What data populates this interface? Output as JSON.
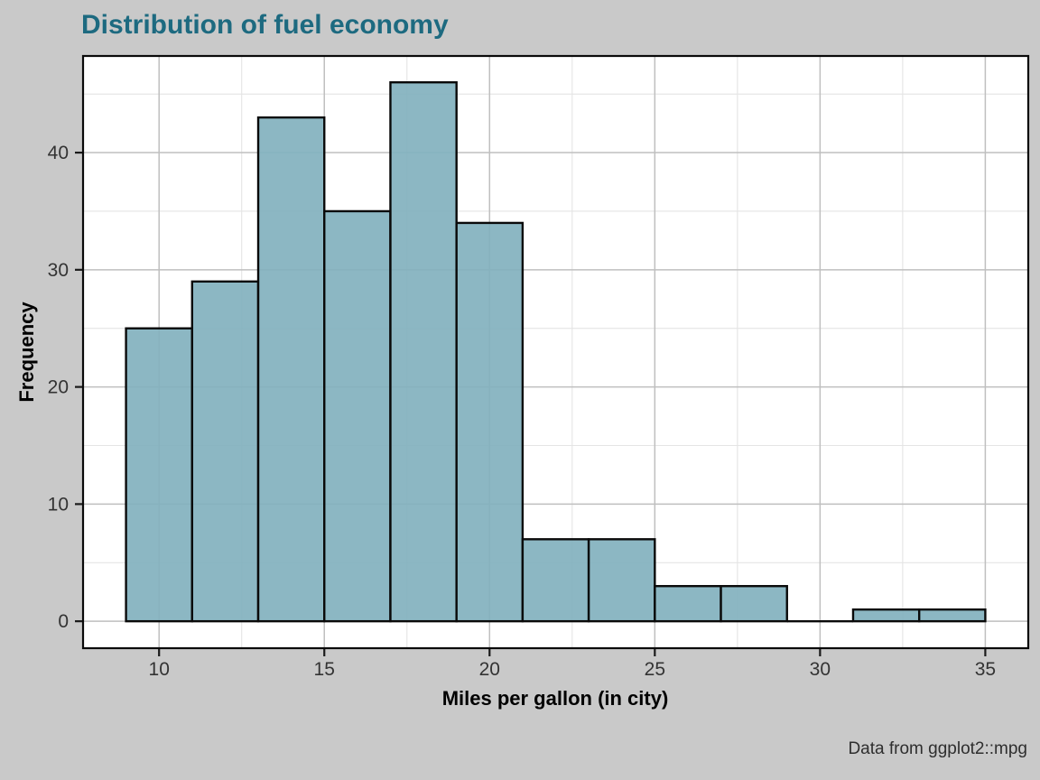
{
  "page": {
    "background_color": "#c9c9c9"
  },
  "chart_data": {
    "type": "bar",
    "subtype": "histogram",
    "title": "Distribution of fuel economy",
    "xlabel": "Miles per gallon (in city)",
    "ylabel": "Frequency",
    "caption": "Data from ggplot2::mpg",
    "bin_width": 2,
    "bin_starts": [
      9,
      11,
      13,
      15,
      17,
      19,
      21,
      23,
      25,
      27,
      29,
      31,
      33
    ],
    "counts": [
      25,
      29,
      43,
      35,
      46,
      34,
      7,
      7,
      3,
      3,
      0,
      1,
      1
    ],
    "x_ticks": [
      10,
      15,
      20,
      25,
      30,
      35
    ],
    "y_ticks": [
      0,
      10,
      20,
      30,
      40
    ],
    "x_minor_gridlines": [
      12.5,
      17.5,
      22.5,
      27.5,
      32.5
    ],
    "y_minor_gridlines": [
      5,
      15,
      25,
      35,
      45
    ],
    "xlim": [
      7.7,
      36.3
    ],
    "ylim": [
      -2.3,
      48.25
    ],
    "grid": "on",
    "legend": "none",
    "colors": {
      "bar_fill": "#82b1be",
      "bar_fill_opacity": "0.92",
      "bar_stroke": "#0a0a0a",
      "panel_background": "#ffffff",
      "panel_border": "#0a0a0a",
      "grid_major": "#bfbfbf",
      "grid_minor": "#e4e4e4",
      "tick_mark": "#1a1a1a",
      "axis_text": "#333333",
      "title_color": "#1d6a80",
      "background": "#c9c9c9"
    }
  }
}
